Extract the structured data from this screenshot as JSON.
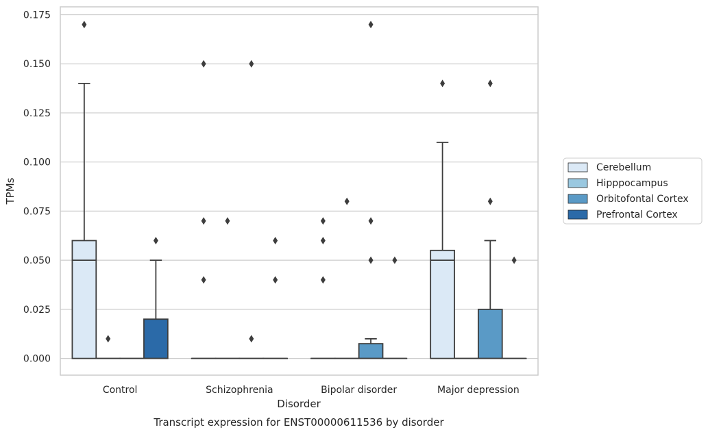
{
  "chart_data": {
    "type": "box",
    "xlabel": "Disorder",
    "ylabel": "TPMs",
    "caption": "Transcript expression for ENST00000611536 by disorder",
    "ylim": [
      -0.0085,
      0.179
    ],
    "yticks": [
      "0.000",
      "0.025",
      "0.050",
      "0.075",
      "0.100",
      "0.125",
      "0.150",
      "0.175"
    ],
    "ytick_values": [
      0,
      0.025,
      0.05,
      0.075,
      0.1,
      0.125,
      0.15,
      0.175
    ],
    "grid": "horizontal",
    "legend_position": "right",
    "categories": [
      "Control",
      "Schizophrenia",
      "Bipolar disorder",
      "Major depression"
    ],
    "series": [
      {
        "name": "Cerebellum",
        "color": "#dbe9f6",
        "boxes": [
          {
            "q1": 0,
            "median": 0.05,
            "q3": 0.06,
            "whisker_low": 0,
            "whisker_high": 0.14,
            "outliers": [
              0.17
            ]
          },
          {
            "q1": 0,
            "median": 0,
            "q3": 0,
            "whisker_low": 0,
            "whisker_high": 0,
            "outliers": [
              0.15,
              0.07,
              0.04
            ]
          },
          {
            "q1": 0,
            "median": 0,
            "q3": 0,
            "whisker_low": 0,
            "whisker_high": 0,
            "outliers": [
              0.07,
              0.06,
              0.04
            ]
          },
          {
            "q1": 0,
            "median": 0.05,
            "q3": 0.055,
            "whisker_low": 0,
            "whisker_high": 0.11,
            "outliers": [
              0.14
            ]
          }
        ]
      },
      {
        "name": "Hipppocampus",
        "color": "#9ac8e0",
        "boxes": [
          {
            "q1": 0,
            "median": 0,
            "q3": 0,
            "whisker_low": 0,
            "whisker_high": 0,
            "outliers": [
              0.01
            ]
          },
          {
            "q1": 0,
            "median": 0,
            "q3": 0,
            "whisker_low": 0,
            "whisker_high": 0,
            "outliers": [
              0.07
            ]
          },
          {
            "q1": 0,
            "median": 0,
            "q3": 0,
            "whisker_low": 0,
            "whisker_high": 0,
            "outliers": [
              0.08
            ]
          },
          {
            "q1": 0,
            "median": 0,
            "q3": 0,
            "whisker_low": 0,
            "whisker_high": 0,
            "outliers": []
          }
        ]
      },
      {
        "name": "Orbitofontal Cortex",
        "color": "#5a9ac6",
        "boxes": [
          {
            "q1": 0,
            "median": 0,
            "q3": 0,
            "whisker_low": 0,
            "whisker_high": 0,
            "outliers": []
          },
          {
            "q1": 0,
            "median": 0,
            "q3": 0,
            "whisker_low": 0,
            "whisker_high": 0,
            "outliers": [
              0.15,
              0.01
            ]
          },
          {
            "q1": 0,
            "median": 0,
            "q3": 0.0075,
            "whisker_low": 0,
            "whisker_high": 0.01,
            "outliers": [
              0.17,
              0.07,
              0.05
            ]
          },
          {
            "q1": 0,
            "median": 0,
            "q3": 0.025,
            "whisker_low": 0,
            "whisker_high": 0.06,
            "outliers": [
              0.14,
              0.08
            ]
          }
        ]
      },
      {
        "name": "Prefrontal Cortex",
        "color": "#2b6aa8",
        "boxes": [
          {
            "q1": 0,
            "median": 0,
            "q3": 0.02,
            "whisker_low": 0,
            "whisker_high": 0.05,
            "outliers": [
              0.06
            ]
          },
          {
            "q1": 0,
            "median": 0,
            "q3": 0,
            "whisker_low": 0,
            "whisker_high": 0,
            "outliers": [
              0.06,
              0.04
            ]
          },
          {
            "q1": 0,
            "median": 0,
            "q3": 0,
            "whisker_low": 0,
            "whisker_high": 0,
            "outliers": [
              0.05
            ]
          },
          {
            "q1": 0,
            "median": 0,
            "q3": 0,
            "whisker_low": 0,
            "whisker_high": 0,
            "outliers": [
              0.05
            ]
          }
        ]
      }
    ]
  }
}
